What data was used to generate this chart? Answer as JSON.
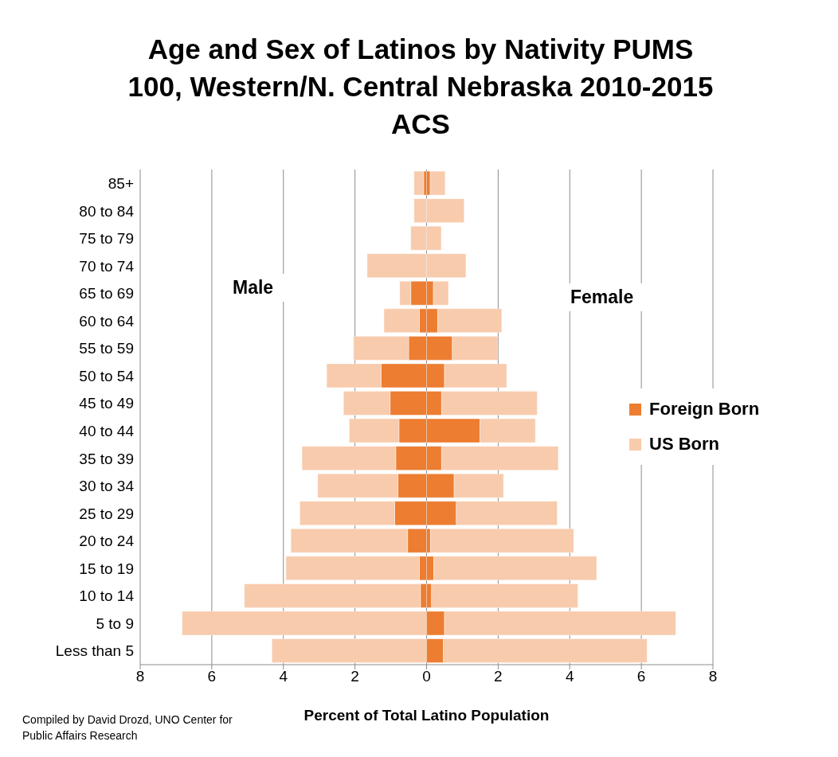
{
  "chart_data": {
    "type": "bar",
    "orientation": "horizontal",
    "stacked": true,
    "title": "Age and Sex of Latinos by Nativity PUMS 100, Western/N. Central Nebraska 2010-2015 ACS",
    "xlabel": "Percent of Total Latino Population",
    "categories": [
      "85+",
      "80 to 84",
      "75 to 79",
      "70 to 74",
      "65 to 69",
      "60 to 64",
      "55 to 59",
      "50 to 54",
      "45 to 49",
      "40 to 44",
      "35 to 39",
      "30 to 34",
      "25 to 29",
      "20 to 24",
      "15 to 19",
      "10 to 14",
      "5 to 9",
      "Less than 5"
    ],
    "series": [
      {
        "name": "Foreign Born",
        "color": "#ed7d31",
        "values": [
          -0.08,
          0,
          0,
          0,
          -0.44,
          -0.2,
          -0.5,
          -1.27,
          -1.02,
          -0.77,
          -0.86,
          -0.8,
          -0.89,
          -0.53,
          -0.2,
          -0.17,
          0,
          0
        ]
      },
      {
        "name": "US Born",
        "color": "#f8cbad",
        "values": [
          -0.27,
          -0.35,
          -0.44,
          -1.66,
          -0.31,
          -0.99,
          -1.54,
          -1.52,
          -1.3,
          -1.39,
          -2.62,
          -2.24,
          -2.65,
          -3.26,
          -3.73,
          -4.92,
          -6.83,
          -4.32
        ]
      },
      {
        "color": "#ed7d31",
        "values": [
          0.1,
          0,
          0,
          0,
          0.19,
          0.31,
          0.72,
          0.5,
          0.42,
          1.49,
          0.42,
          0.77,
          0.83,
          0.11,
          0.2,
          0.14,
          0.5,
          0.47
        ]
      },
      {
        "color": "#f8cbad",
        "values": [
          0.42,
          1.05,
          0.41,
          1.1,
          0.42,
          1.79,
          1.27,
          1.74,
          2.67,
          1.55,
          3.26,
          1.38,
          2.82,
          4.0,
          4.55,
          4.09,
          6.46,
          5.69
        ]
      }
    ],
    "xlim": [
      -8,
      8
    ],
    "xticks": [
      {
        "value": -8,
        "label": "8"
      },
      {
        "value": -6,
        "label": "6"
      },
      {
        "value": -4,
        "label": "4"
      },
      {
        "value": -2,
        "label": "2"
      },
      0,
      2,
      4,
      6,
      8
    ],
    "grid": "x",
    "legend": "right",
    "annotations": [
      "Male",
      "Female",
      "Compiled by David Drozd, UNO Center for Public Affairs Research"
    ]
  }
}
